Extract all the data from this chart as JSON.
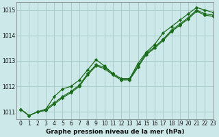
{
  "title": "Graphe pression niveau de la mer (hPa)",
  "bg_color": "#cce8e8",
  "grid_color": "#aacccc",
  "line_color": "#1a6b1a",
  "xlim": [
    -0.5,
    23
  ],
  "ylim": [
    1010.7,
    1015.3
  ],
  "yticks": [
    1011,
    1012,
    1013,
    1014,
    1015
  ],
  "xticks": [
    0,
    1,
    2,
    3,
    4,
    5,
    6,
    7,
    8,
    9,
    10,
    11,
    12,
    13,
    14,
    15,
    16,
    17,
    18,
    19,
    20,
    21,
    22,
    23
  ],
  "series1": {
    "x": [
      0,
      1,
      2,
      3,
      4,
      5,
      6,
      7,
      8,
      9,
      10,
      11,
      12,
      13,
      14,
      15,
      16,
      17,
      18,
      19,
      20,
      21,
      22,
      23
    ],
    "y": [
      1011.1,
      1010.85,
      1011.0,
      1011.1,
      1011.35,
      1011.6,
      1011.8,
      1012.05,
      1012.5,
      1012.85,
      1012.75,
      1012.5,
      1012.3,
      1012.3,
      1012.8,
      1013.3,
      1013.55,
      1013.85,
      1014.2,
      1014.45,
      1014.7,
      1015.0,
      1014.85,
      1014.8
    ]
  },
  "series2": {
    "x": [
      0,
      1,
      2,
      3,
      4,
      5,
      6,
      7,
      8,
      9,
      10,
      11,
      12,
      13,
      14,
      15,
      16,
      17,
      18,
      19,
      20,
      21,
      22,
      23
    ],
    "y": [
      1011.1,
      1010.85,
      1011.0,
      1011.05,
      1011.3,
      1011.55,
      1011.75,
      1012.0,
      1012.45,
      1012.8,
      1012.7,
      1012.45,
      1012.25,
      1012.25,
      1012.75,
      1013.25,
      1013.5,
      1013.8,
      1014.15,
      1014.4,
      1014.65,
      1014.95,
      1014.8,
      1014.75
    ]
  },
  "series3": {
    "x": [
      0,
      1,
      2,
      3,
      4,
      5,
      6,
      7,
      8,
      9,
      10,
      11,
      12,
      13,
      14,
      15,
      16,
      17,
      18,
      19,
      20,
      21,
      22,
      23
    ],
    "y": [
      1011.1,
      1010.85,
      1011.0,
      1011.1,
      1011.6,
      1011.9,
      1012.0,
      1012.25,
      1012.65,
      1013.05,
      1012.8,
      1012.5,
      1012.3,
      1012.3,
      1012.9,
      1013.35,
      1013.65,
      1014.1,
      1014.35,
      1014.6,
      1014.85,
      1015.1,
      1015.0,
      1014.9
    ]
  }
}
